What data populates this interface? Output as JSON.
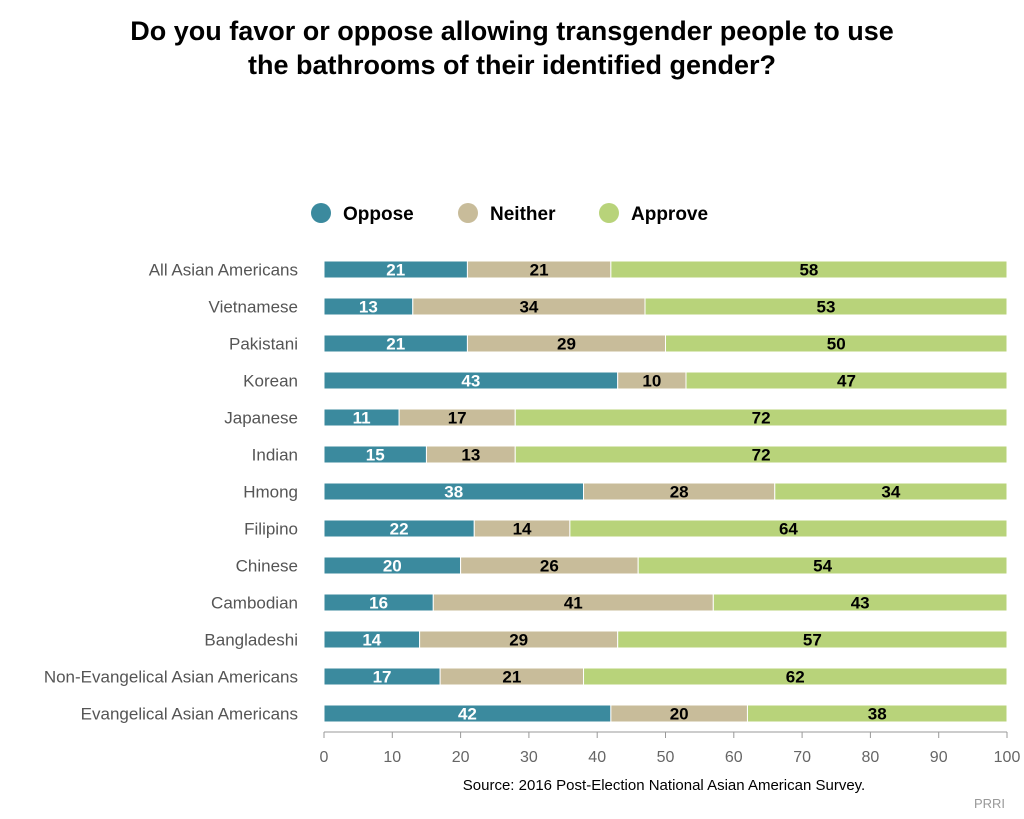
{
  "chart_data": {
    "type": "bar",
    "orientation": "horizontal",
    "stacked": true,
    "title": [
      "Do you favor or oppose allowing transgender people to use",
      "the bathrooms of their identified gender?"
    ],
    "source": "Source: 2016 Post-Election National Asian American Survey.",
    "credit": "PRRI",
    "legend_position": "top",
    "categories": [
      "All Asian Americans",
      "Vietnamese",
      "Pakistani",
      "Korean",
      "Japanese",
      "Indian",
      "Hmong",
      "Filipino",
      "Chinese",
      "Cambodian",
      "Bangladeshi",
      "Non-Evangelical Asian Americans",
      "Evangelical Asian Americans"
    ],
    "series": [
      {
        "name": "Oppose",
        "color": "#3b8a9e",
        "label_color": "#ffffff",
        "values": [
          21,
          13,
          21,
          43,
          11,
          15,
          38,
          22,
          20,
          16,
          14,
          17,
          42
        ]
      },
      {
        "name": "Neither",
        "color": "#c8bc9a",
        "label_color": "#000000",
        "values": [
          21,
          34,
          29,
          10,
          17,
          13,
          28,
          14,
          26,
          41,
          29,
          21,
          20
        ]
      },
      {
        "name": "Approve",
        "color": "#b8d37a",
        "label_color": "#000000",
        "values": [
          58,
          53,
          50,
          47,
          72,
          72,
          34,
          64,
          54,
          43,
          57,
          62,
          38
        ]
      }
    ],
    "xlim": [
      0,
      100
    ],
    "xticks": [
      0,
      10,
      20,
      30,
      40,
      50,
      60,
      70,
      80,
      90,
      100
    ],
    "grid": false
  }
}
